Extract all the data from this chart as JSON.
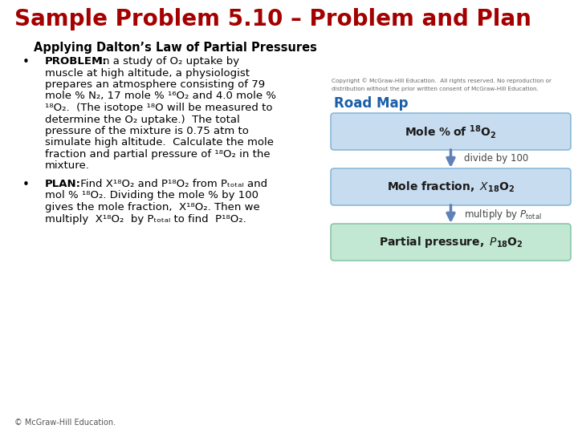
{
  "title": "Sample Problem 5.10 – Problem and Plan",
  "subtitle": "Applying Dalton’s Law of Partial Pressures",
  "title_color": "#a50000",
  "subtitle_color": "#000000",
  "bg_color": "#ffffff",
  "copyright_line1": "Copyright © McGraw-Hill Education.  All rights reserved. No reproduction or",
  "copyright_line2": "distribution without the prior written consent of McGraw-Hill Education.",
  "road_map_title": "Road Map",
  "road_map_color": "#1a5fa8",
  "box1_bg": "#c8dcf0",
  "box1_border": "#7bafd4",
  "box2_bg": "#c8dcf0",
  "box2_border": "#7bafd4",
  "box3_bg": "#c2e8d4",
  "box3_border": "#7bbfa0",
  "arrow_color": "#6080b8",
  "footer": "© McGraw-Hill Education."
}
